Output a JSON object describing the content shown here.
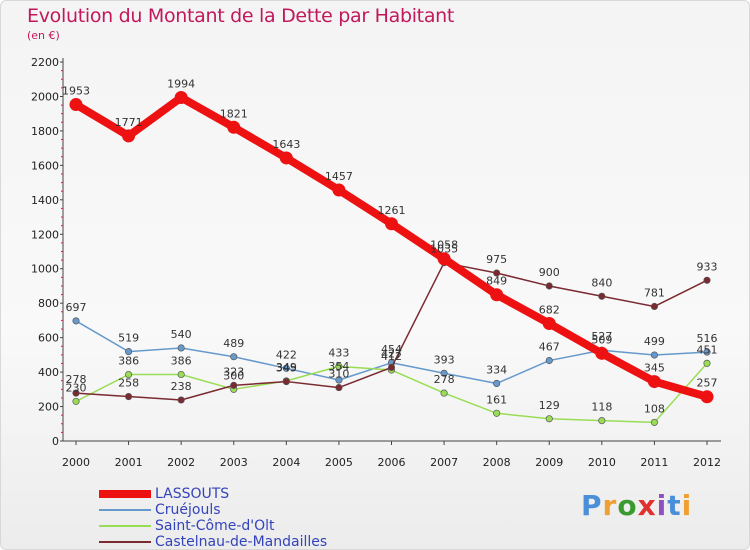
{
  "header": {
    "title": "Evolution du Montant de la Dette par Habitant",
    "subtitle": "(en €)"
  },
  "logo": {
    "text": "Proxiti",
    "colors": [
      "#4a8fd8",
      "#f0a030",
      "#3a9a30",
      "#e03030",
      "#9050c0",
      "#4a8fd8",
      "#f0a030"
    ]
  },
  "chart_data": {
    "type": "line",
    "title": "Evolution du Montant de la Dette par Habitant",
    "ylabel": "(en €)",
    "xlabel": "",
    "ylim": [
      0,
      2200
    ],
    "yticks": [
      0,
      200,
      400,
      600,
      800,
      1000,
      1200,
      1400,
      1600,
      1800,
      2000,
      2200
    ],
    "x": [
      "2000",
      "2001",
      "2002",
      "2003",
      "2004",
      "2005",
      "2006",
      "2007",
      "2008",
      "2009",
      "2010",
      "2011",
      "2012"
    ],
    "grid": false,
    "legend": "bottom-left",
    "series": [
      {
        "name": "LASSOUTS",
        "color": "#ee1111",
        "values": [
          1953,
          1771,
          1994,
          1821,
          1643,
          1457,
          1261,
          1058,
          849,
          682,
          509,
          345,
          257
        ]
      },
      {
        "name": "Cruéjouls",
        "color": "#6699cc",
        "values": [
          697,
          519,
          540,
          489,
          422,
          354,
          454,
          393,
          334,
          467,
          527,
          499,
          516
        ]
      },
      {
        "name": "Saint-Côme-d'Olt",
        "color": "#99dd55",
        "values": [
          230,
          386,
          386,
          300,
          349,
          433,
          412,
          278,
          161,
          129,
          118,
          108,
          451
        ]
      },
      {
        "name": "Castelnau-de-Mandailles",
        "color": "#7a2a30",
        "values": [
          278,
          258,
          238,
          323,
          345,
          310,
          427,
          1035,
          975,
          900,
          840,
          781,
          933
        ]
      }
    ]
  }
}
